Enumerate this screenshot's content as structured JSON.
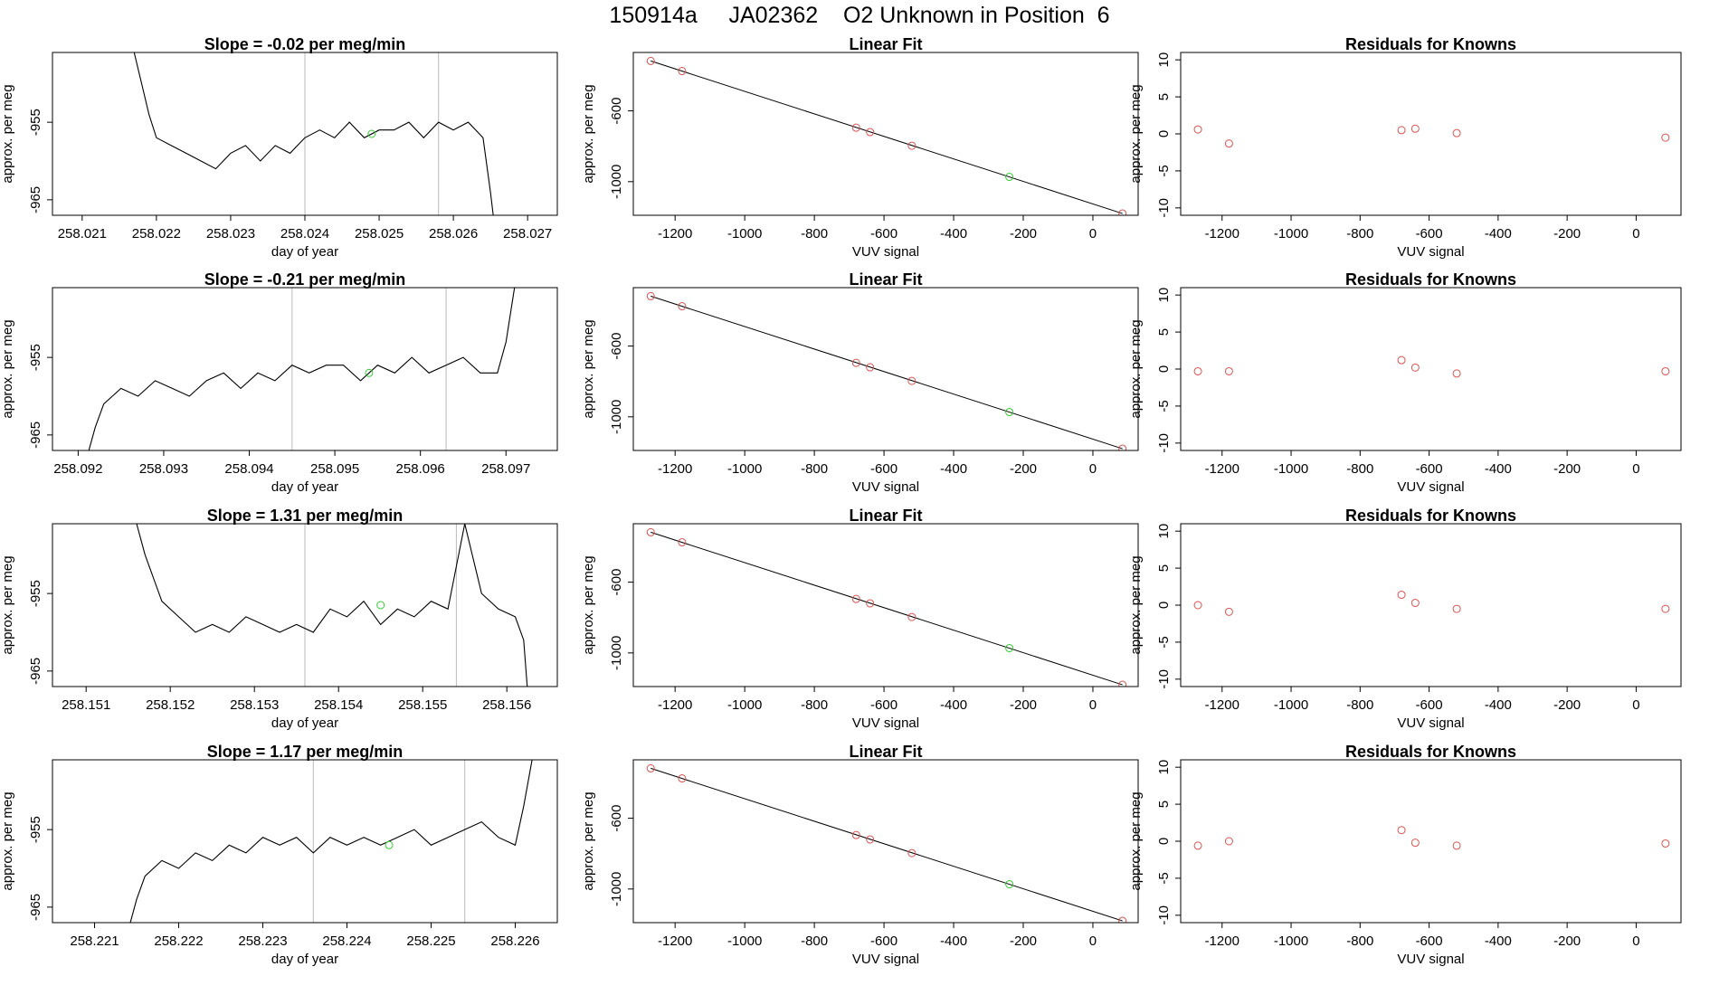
{
  "page": {
    "title": "150914a     JA02362    O2 Unknown in Position  6"
  },
  "colors": {
    "axis": "#000000",
    "trace": "#000000",
    "fit_line": "#000000",
    "known_points": "#d9534f",
    "unknown_point": "#33cc33",
    "bracket_lines": "#bbbbbb"
  },
  "chart_data": [
    {
      "type": "line",
      "title": "Slope =  -0.02  per meg/min",
      "xlabel": "day of year",
      "ylabel": "approx. per meg",
      "xlim": [
        258.0206,
        258.0274
      ],
      "ylim": [
        -967.0,
        -946.0
      ],
      "xticks": [
        "258.021",
        "258.022",
        "258.023",
        "258.024",
        "258.025",
        "258.026",
        "258.027"
      ],
      "yticks": [
        "-965",
        "-955"
      ],
      "vlines": [
        258.024,
        258.0258
      ],
      "x": [
        258.0217,
        258.0218,
        258.0219,
        258.022,
        258.0222,
        258.0224,
        258.0226,
        258.0228,
        258.023,
        258.0232,
        258.0234,
        258.0236,
        258.0238,
        258.024,
        258.0242,
        258.0244,
        258.0246,
        258.0248,
        258.025,
        258.0252,
        258.0254,
        258.0256,
        258.0258,
        258.026,
        258.0262,
        258.0264,
        258.0265,
        258.02655
      ],
      "y": [
        -946,
        -950,
        -954,
        -957,
        -958,
        -959,
        -960,
        -961,
        -959,
        -958,
        -960,
        -958,
        -959,
        -957,
        -956,
        -957,
        -955,
        -957,
        -956,
        -956,
        -955,
        -957,
        -955,
        -956,
        -955,
        -957,
        -964,
        -968
      ],
      "unknown_point": {
        "x": 258.0249,
        "y": -956.5
      }
    },
    {
      "type": "scatter",
      "title": "Linear Fit",
      "xlabel": "VUV signal",
      "ylabel": "approx. per meg",
      "xlim": [
        -1320,
        130
      ],
      "ylim": [
        -1190,
        -270
      ],
      "xticks": [
        "-1200",
        "-1000",
        "-800",
        "-600",
        "-400",
        "-200",
        "0"
      ],
      "yticks": [
        "-600",
        "-1000"
      ],
      "fit_line": {
        "x": [
          -1270,
          85
        ],
        "y": [
          -318,
          -1180
        ]
      },
      "known_points": {
        "x": [
          -1270,
          -1180,
          -680,
          -640,
          -520,
          85
        ],
        "y": [
          -318,
          -375,
          -695,
          -720,
          -797,
          -1180
        ]
      },
      "unknown_point": {
        "x": -240,
        "y": -973
      }
    },
    {
      "type": "scatter",
      "title": "Residuals for Knowns",
      "xlabel": "VUV signal",
      "ylabel": "approx. per meg",
      "xlim": [
        -1320,
        130
      ],
      "ylim": [
        -11,
        11
      ],
      "xticks": [
        "-1200",
        "-1000",
        "-800",
        "-600",
        "-400",
        "-200",
        "0"
      ],
      "yticks": [
        "10",
        "5",
        "0",
        "-5",
        "-10"
      ],
      "known_points": {
        "x": [
          -1270,
          -1180,
          -680,
          -640,
          -520,
          85
        ],
        "y": [
          0.6,
          -1.3,
          0.5,
          0.7,
          0.1,
          -0.5
        ]
      }
    },
    {
      "type": "line",
      "title": "Slope =  -0.21  per meg/min",
      "xlabel": "day of year",
      "ylabel": "approx. per meg",
      "xlim": [
        258.0917,
        258.0976
      ],
      "ylim": [
        -967.0,
        -946.0
      ],
      "xticks": [
        "258.092",
        "258.093",
        "258.094",
        "258.095",
        "258.096",
        "258.097"
      ],
      "yticks": [
        "-965",
        "-955"
      ],
      "vlines": [
        258.0945,
        258.0963
      ],
      "x": [
        258.0921,
        258.0922,
        258.0923,
        258.0925,
        258.0927,
        258.0929,
        258.0931,
        258.0933,
        258.0935,
        258.0937,
        258.0939,
        258.0941,
        258.0943,
        258.0945,
        258.0947,
        258.0949,
        258.0951,
        258.0953,
        258.0955,
        258.0957,
        258.0959,
        258.0961,
        258.0963,
        258.0965,
        258.0967,
        258.0969,
        258.097,
        258.0971
      ],
      "y": [
        -968,
        -964,
        -961,
        -959,
        -960,
        -958,
        -959,
        -960,
        -958,
        -957,
        -959,
        -957,
        -958,
        -956,
        -957,
        -956,
        -956,
        -958,
        -956,
        -957,
        -955,
        -957,
        -956,
        -955,
        -957,
        -957,
        -953,
        -946
      ],
      "unknown_point": {
        "x": 258.0954,
        "y": -957.0
      }
    },
    {
      "type": "scatter",
      "title": "Linear Fit",
      "xlabel": "VUV signal",
      "ylabel": "approx. per meg",
      "xlim": [
        -1320,
        130
      ],
      "ylim": [
        -1190,
        -270
      ],
      "xticks": [
        "-1200",
        "-1000",
        "-800",
        "-600",
        "-400",
        "-200",
        "0"
      ],
      "yticks": [
        "-600",
        "-1000"
      ],
      "fit_line": {
        "x": [
          -1270,
          85
        ],
        "y": [
          -318,
          -1180
        ]
      },
      "known_points": {
        "x": [
          -1270,
          -1180,
          -680,
          -640,
          -520,
          85
        ],
        "y": [
          -318,
          -375,
          -695,
          -720,
          -797,
          -1180
        ]
      },
      "unknown_point": {
        "x": -240,
        "y": -973
      }
    },
    {
      "type": "scatter",
      "title": "Residuals for Knowns",
      "xlabel": "VUV signal",
      "ylabel": "approx. per meg",
      "xlim": [
        -1320,
        130
      ],
      "ylim": [
        -11,
        11
      ],
      "xticks": [
        "-1200",
        "-1000",
        "-800",
        "-600",
        "-400",
        "-200",
        "0"
      ],
      "yticks": [
        "10",
        "5",
        "0",
        "-5",
        "-10"
      ],
      "known_points": {
        "x": [
          -1270,
          -1180,
          -680,
          -640,
          -520,
          85
        ],
        "y": [
          -0.3,
          -0.3,
          1.2,
          0.2,
          -0.6,
          -0.3
        ]
      }
    },
    {
      "type": "line",
      "title": "Slope =  1.31  per meg/min",
      "xlabel": "day of year",
      "ylabel": "approx. per meg",
      "xlim": [
        258.1506,
        258.1566
      ],
      "ylim": [
        -967.0,
        -946.0
      ],
      "xticks": [
        "258.151",
        "258.152",
        "258.153",
        "258.154",
        "258.155",
        "258.156"
      ],
      "yticks": [
        "-965",
        "-955"
      ],
      "vlines": [
        258.1536,
        258.1554
      ],
      "x": [
        258.1516,
        258.1517,
        258.1518,
        258.1519,
        258.1521,
        258.1523,
        258.1525,
        258.1527,
        258.1529,
        258.1531,
        258.1533,
        258.1535,
        258.1537,
        258.1539,
        258.1541,
        258.1543,
        258.1545,
        258.1547,
        258.1549,
        258.1551,
        258.1553,
        258.1555,
        258.1557,
        258.1559,
        258.1561,
        258.1562,
        258.15625
      ],
      "y": [
        -946,
        -950,
        -953,
        -956,
        -958,
        -960,
        -959,
        -960,
        -958,
        -959,
        -960,
        -959,
        -960,
        -957,
        -958,
        -956,
        -959,
        -957,
        -958,
        -956,
        -957,
        -946,
        -955,
        -957,
        -958,
        -961,
        -968
      ],
      "unknown_point": {
        "x": 258.1545,
        "y": -956.5
      }
    },
    {
      "type": "scatter",
      "title": "Linear Fit",
      "xlabel": "VUV signal",
      "ylabel": "approx. per meg",
      "xlim": [
        -1320,
        130
      ],
      "ylim": [
        -1190,
        -270
      ],
      "xticks": [
        "-1200",
        "-1000",
        "-800",
        "-600",
        "-400",
        "-200",
        "0"
      ],
      "yticks": [
        "-600",
        "-1000"
      ],
      "fit_line": {
        "x": [
          -1270,
          85
        ],
        "y": [
          -318,
          -1180
        ]
      },
      "known_points": {
        "x": [
          -1270,
          -1180,
          -680,
          -640,
          -520,
          85
        ],
        "y": [
          -318,
          -375,
          -695,
          -720,
          -797,
          -1180
        ]
      },
      "unknown_point": {
        "x": -240,
        "y": -973
      }
    },
    {
      "type": "scatter",
      "title": "Residuals for Knowns",
      "xlabel": "VUV signal",
      "ylabel": "approx. per meg",
      "xlim": [
        -1320,
        130
      ],
      "ylim": [
        -11,
        11
      ],
      "xticks": [
        "-1200",
        "-1000",
        "-800",
        "-600",
        "-400",
        "-200",
        "0"
      ],
      "yticks": [
        "10",
        "5",
        "0",
        "-5",
        "-10"
      ],
      "known_points": {
        "x": [
          -1270,
          -1180,
          -680,
          -640,
          -520,
          85
        ],
        "y": [
          0.0,
          -0.9,
          1.4,
          0.3,
          -0.5,
          -0.5
        ]
      }
    },
    {
      "type": "line",
      "title": "Slope =  1.17  per meg/min",
      "xlabel": "day of year",
      "ylabel": "approx. per meg",
      "xlim": [
        258.2205,
        258.2265
      ],
      "ylim": [
        -967.0,
        -946.0
      ],
      "xticks": [
        "258.221",
        "258.222",
        "258.223",
        "258.224",
        "258.225",
        "258.226"
      ],
      "yticks": [
        "-965",
        "-955"
      ],
      "vlines": [
        258.2236,
        258.2254
      ],
      "x": [
        258.2214,
        258.2215,
        258.2216,
        258.2218,
        258.222,
        258.2222,
        258.2224,
        258.2226,
        258.2228,
        258.223,
        258.2232,
        258.2234,
        258.2236,
        258.2238,
        258.224,
        258.2242,
        258.2244,
        258.2246,
        258.2248,
        258.225,
        258.2252,
        258.2254,
        258.2256,
        258.2258,
        258.226,
        258.2261,
        258.2262
      ],
      "y": [
        -968,
        -964,
        -961,
        -959,
        -960,
        -958,
        -959,
        -957,
        -958,
        -956,
        -957,
        -956,
        -958,
        -956,
        -957,
        -956,
        -957,
        -956,
        -955,
        -957,
        -956,
        -955,
        -954,
        -956,
        -957,
        -952,
        -946
      ],
      "unknown_point": {
        "x": 258.2245,
        "y": -957.0
      }
    },
    {
      "type": "scatter",
      "title": "Linear Fit",
      "xlabel": "VUV signal",
      "ylabel": "approx. per meg",
      "xlim": [
        -1320,
        130
      ],
      "ylim": [
        -1190,
        -270
      ],
      "xticks": [
        "-1200",
        "-1000",
        "-800",
        "-600",
        "-400",
        "-200",
        "0"
      ],
      "yticks": [
        "-600",
        "-1000"
      ],
      "fit_line": {
        "x": [
          -1270,
          85
        ],
        "y": [
          -318,
          -1180
        ]
      },
      "known_points": {
        "x": [
          -1270,
          -1180,
          -680,
          -640,
          -520,
          85
        ],
        "y": [
          -318,
          -375,
          -695,
          -720,
          -797,
          -1180
        ]
      },
      "unknown_point": {
        "x": -240,
        "y": -973
      }
    },
    {
      "type": "scatter",
      "title": "Residuals for Knowns",
      "xlabel": "VUV signal",
      "ylabel": "approx. per meg",
      "xlim": [
        -1320,
        130
      ],
      "ylim": [
        -11,
        11
      ],
      "xticks": [
        "-1200",
        "-1000",
        "-800",
        "-600",
        "-400",
        "-200",
        "0"
      ],
      "yticks": [
        "10",
        "5",
        "0",
        "-5",
        "-10"
      ],
      "known_points": {
        "x": [
          -1270,
          -1180,
          -680,
          -640,
          -520,
          85
        ],
        "y": [
          -0.6,
          0.0,
          1.5,
          -0.2,
          -0.6,
          -0.3
        ]
      }
    }
  ]
}
